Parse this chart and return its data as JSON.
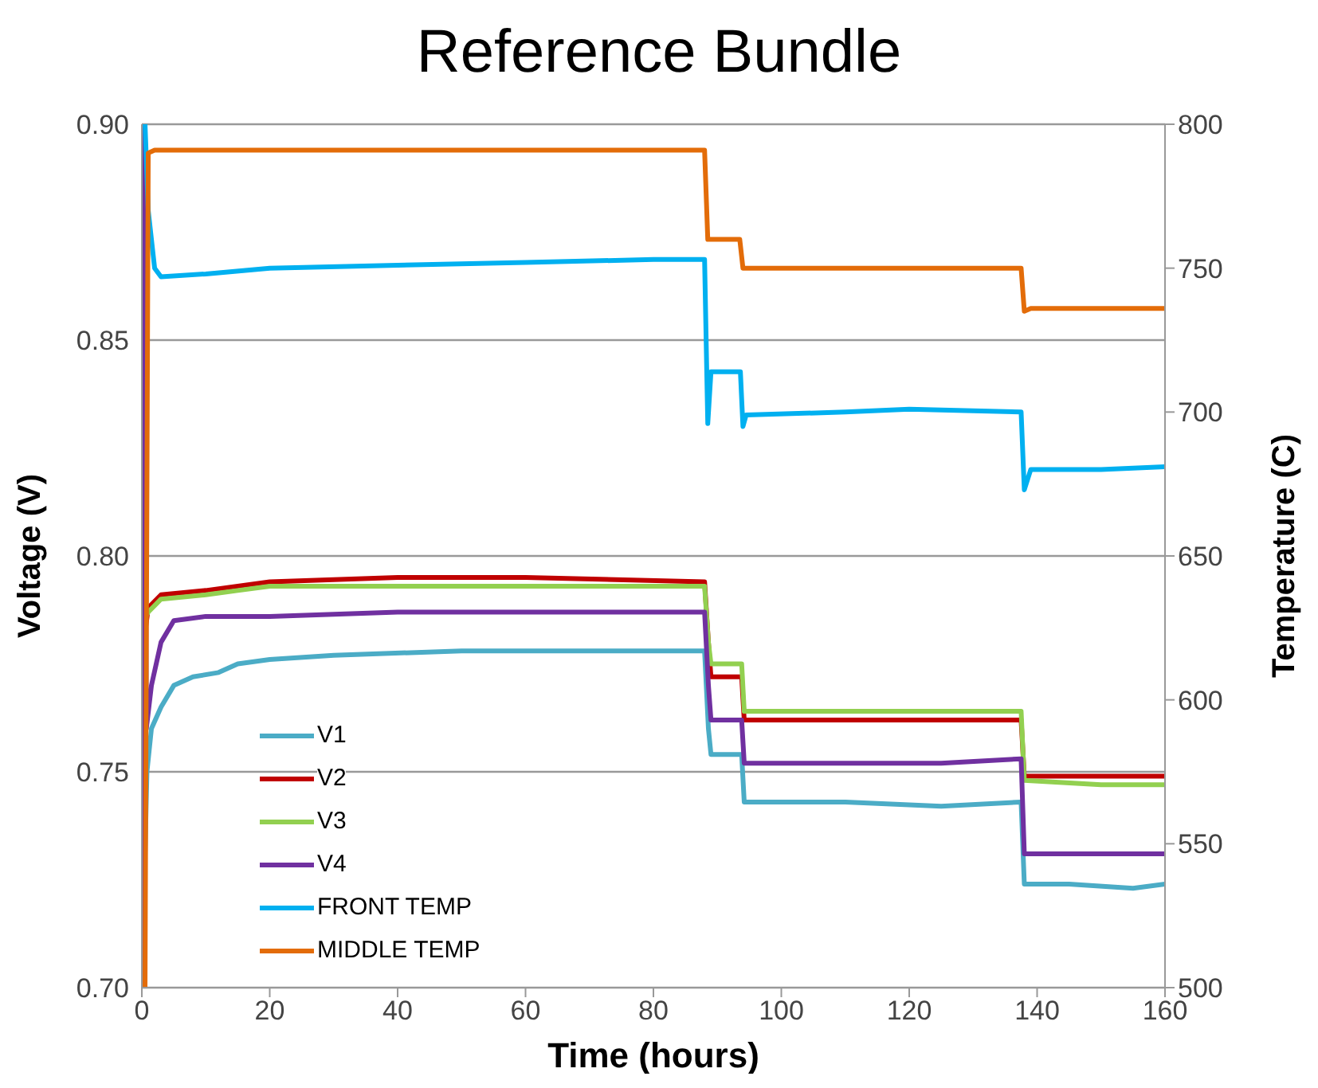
{
  "chart_data": {
    "type": "line",
    "title": "Reference Bundle",
    "xlabel": "Time (hours)",
    "ylabel": "Voltage (V)",
    "y2label": "Temperature (C)",
    "xlim": [
      0,
      160
    ],
    "xticks": [
      0,
      20,
      40,
      60,
      80,
      100,
      120,
      140,
      160
    ],
    "ylim": [
      0.7,
      0.9
    ],
    "yticks": [
      {
        "value": 0.7,
        "label": "0.70"
      },
      0.75,
      {
        "value": 0.8,
        "label": "0.80"
      },
      0.85,
      {
        "value": 0.9,
        "label": "0.90"
      }
    ],
    "y2lim": [
      500,
      800
    ],
    "y2ticks": [
      500,
      550,
      600,
      650,
      700,
      750,
      800
    ],
    "grid": "y",
    "legend": "bottom left",
    "marker": "none",
    "line_style": "solid",
    "series": [
      {
        "name": "V1",
        "color": "#4bacc6",
        "x": [
          0,
          0.8,
          1.5,
          3,
          5,
          8,
          12,
          15,
          20,
          30,
          50,
          70,
          88,
          88.6,
          89,
          93.8,
          94.2,
          110,
          125,
          137.5,
          138,
          145,
          155,
          160
        ],
        "values": [
          0.7,
          0.75,
          0.76,
          0.765,
          0.77,
          0.772,
          0.773,
          0.775,
          0.776,
          0.777,
          0.778,
          0.778,
          0.778,
          0.76,
          0.754,
          0.754,
          0.743,
          0.743,
          0.742,
          0.743,
          0.724,
          0.724,
          0.723,
          0.724
        ]
      },
      {
        "name": "V2",
        "color": "#c00000",
        "x": [
          0,
          0.3,
          1,
          3,
          10,
          20,
          40,
          60,
          88,
          88.6,
          89,
          93.8,
          94.2,
          110,
          125,
          137.5,
          138,
          150,
          160
        ],
        "values": [
          0.805,
          0.78,
          0.788,
          0.791,
          0.792,
          0.794,
          0.795,
          0.795,
          0.794,
          0.78,
          0.772,
          0.772,
          0.762,
          0.762,
          0.762,
          0.762,
          0.749,
          0.749,
          0.749
        ]
      },
      {
        "name": "V3",
        "color": "#92d050",
        "x": [
          0,
          0.3,
          1,
          3,
          10,
          15,
          20,
          40,
          60,
          88,
          88.6,
          89,
          93.8,
          94.2,
          110,
          125,
          137.5,
          138,
          150,
          160
        ],
        "values": [
          0.7,
          0.785,
          0.787,
          0.79,
          0.791,
          0.792,
          0.793,
          0.793,
          0.793,
          0.793,
          0.78,
          0.775,
          0.775,
          0.764,
          0.764,
          0.764,
          0.764,
          0.748,
          0.747,
          0.747
        ]
      },
      {
        "name": "V4",
        "color": "#7030a0",
        "x": [
          0,
          0.4,
          0.7,
          1.5,
          3,
          5,
          10,
          20,
          40,
          60,
          88,
          88.6,
          89,
          93.8,
          94.2,
          110,
          125,
          137.5,
          138,
          150,
          160
        ],
        "values": [
          0.7,
          0.9,
          0.76,
          0.77,
          0.78,
          0.785,
          0.786,
          0.786,
          0.787,
          0.787,
          0.787,
          0.77,
          0.762,
          0.762,
          0.752,
          0.752,
          0.752,
          0.753,
          0.731,
          0.731,
          0.731
        ]
      },
      {
        "name": "FRONT TEMP",
        "color": "#00b0f0",
        "axis": "y2",
        "x": [
          0.5,
          1,
          2,
          3,
          10,
          20,
          40,
          60,
          80,
          88,
          88.5,
          89,
          93.6,
          94,
          94.5,
          110,
          120,
          137.5,
          138,
          139,
          150,
          160
        ],
        "values": [
          800,
          770,
          750,
          747,
          748,
          750,
          751,
          752,
          753,
          753,
          696,
          714,
          714,
          695,
          699,
          700,
          701,
          700,
          673,
          680,
          680,
          681
        ]
      },
      {
        "name": "MIDDLE TEMP",
        "color": "#e36c09",
        "axis": "y2",
        "x": [
          0,
          0.5,
          1,
          2,
          20,
          40,
          60,
          88,
          88.5,
          89,
          93.5,
          94,
          110,
          137.5,
          138,
          139,
          150,
          160
        ],
        "values": [
          500,
          500,
          790,
          791,
          791,
          791,
          791,
          791,
          760,
          760,
          760,
          750,
          750,
          750,
          735,
          736,
          736,
          736
        ]
      }
    ]
  }
}
